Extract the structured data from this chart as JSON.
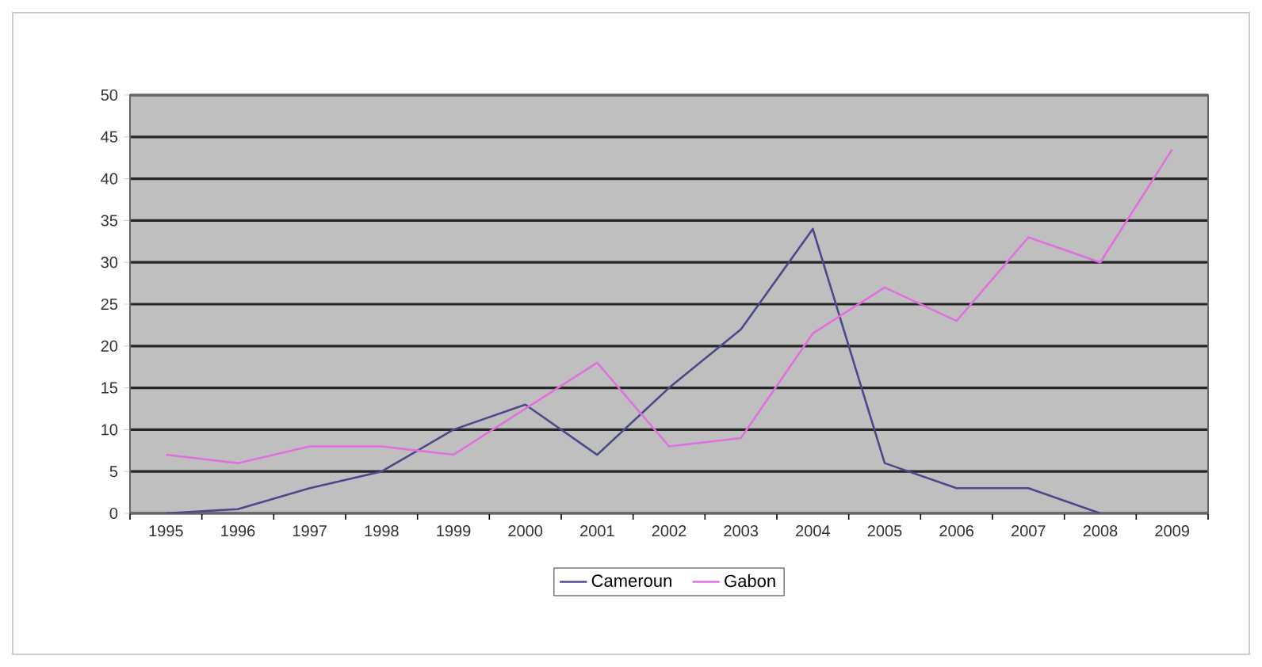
{
  "chart_data": {
    "type": "line",
    "categories": [
      "1995",
      "1996",
      "1997",
      "1998",
      "1999",
      "2000",
      "2001",
      "2002",
      "2003",
      "2004",
      "2005",
      "2006",
      "2007",
      "2008",
      "2009"
    ],
    "series": [
      {
        "name": "Cameroun",
        "color": "#4a4a8a",
        "values": [
          0,
          0.5,
          3,
          5,
          10,
          13,
          7,
          15,
          22,
          34,
          6,
          3,
          3,
          0,
          null
        ]
      },
      {
        "name": "Gabon",
        "color": "#e070e0",
        "values": [
          7,
          6,
          8,
          8,
          7,
          12.5,
          18,
          8,
          9,
          21.5,
          27,
          23,
          33,
          30,
          43.5
        ]
      }
    ],
    "ylim": [
      0,
      50
    ],
    "yticks": [
      0,
      5,
      10,
      15,
      20,
      25,
      30,
      35,
      40,
      45,
      50
    ],
    "grid": "y",
    "legend": "bottom",
    "marker": "none",
    "line_style": "solid"
  }
}
